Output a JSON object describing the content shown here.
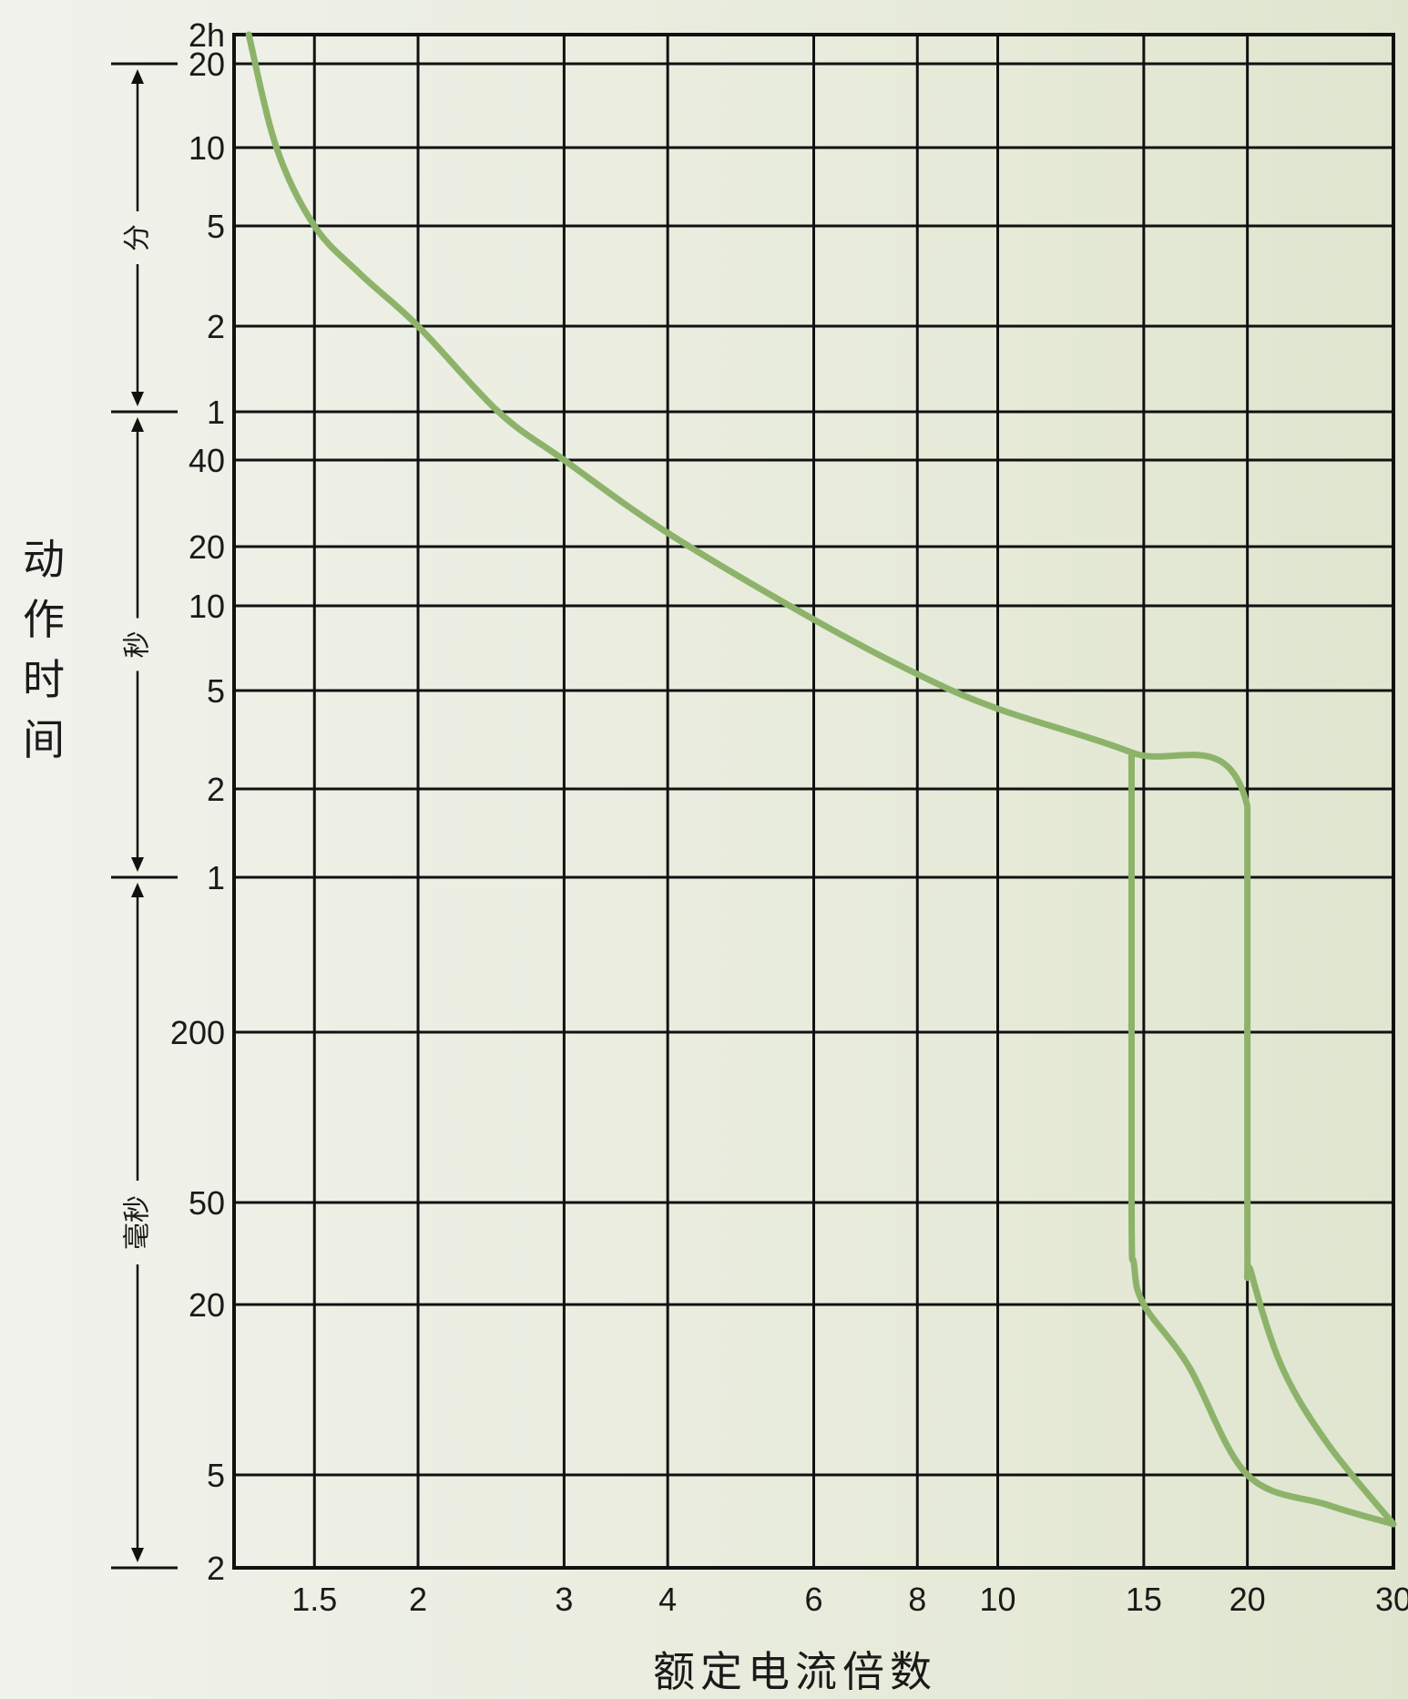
{
  "chart_data": {
    "type": "line",
    "title": "",
    "xlabel": "额定电流倍数",
    "ylabel": "动作时间",
    "x_scale": "log",
    "y_scale": "log",
    "xlim": [
      1.2,
      30
    ],
    "grid": true,
    "x_ticks": [
      {
        "value": 1.5,
        "label": "1.5"
      },
      {
        "value": 2,
        "label": "2"
      },
      {
        "value": 3,
        "label": "3"
      },
      {
        "value": 4,
        "label": "4"
      },
      {
        "value": 6,
        "label": "6"
      },
      {
        "value": 8,
        "label": "8"
      },
      {
        "value": 10,
        "label": "10"
      },
      {
        "value": 15,
        "label": "15"
      },
      {
        "value": 20,
        "label": "20"
      },
      {
        "value": 30,
        "label": "30"
      }
    ],
    "y_ticks": [
      {
        "label": "2h"
      },
      {
        "label": "20"
      },
      {
        "label": "10"
      },
      {
        "label": "5"
      },
      {
        "label": "2"
      },
      {
        "label": "1"
      },
      {
        "label": "40"
      },
      {
        "label": "20"
      },
      {
        "label": "10"
      },
      {
        "label": "5"
      },
      {
        "label": "2"
      },
      {
        "label": "1"
      },
      {
        "label": "200"
      },
      {
        "label": "50"
      },
      {
        "label": "20"
      },
      {
        "label": "5"
      },
      {
        "label": "2"
      }
    ],
    "y_unit_bands": [
      {
        "label": "分"
      },
      {
        "label": "秒"
      },
      {
        "label": "毫秒"
      }
    ],
    "line_color": "#8db36b",
    "series": [
      {
        "x": [
          1.25,
          1.35,
          1.5,
          1.7,
          2.0,
          2.5,
          3.0,
          4.0,
          6.0,
          8.0,
          10.0,
          14.5,
          20.0,
          20.0,
          20.2,
          22.0,
          25.0,
          30.0
        ],
        "y_label_positions": [
          "above 2h",
          "10 min",
          "5 min",
          "≈3 min",
          "2 min",
          "≈1 min",
          "40 s",
          "≈22 s",
          "≈9 s",
          "≈6 s",
          "≈4 s",
          "≈2.7 s",
          "≈1.7 s",
          "≈35 ms",
          "≈18 ms",
          "≈8 ms",
          "≈4 ms",
          "≈3 ms"
        ]
      },
      {
        "x": [
          14.5,
          14.5,
          14.6,
          15.0,
          17.0,
          20.0,
          25.0,
          30.0
        ],
        "y_label_positions": [
          "≈2.7 s",
          "50 ms",
          "≈30 ms",
          "20 ms",
          "≈8 ms",
          "5 ms",
          "≈3.5 ms",
          "≈3 ms"
        ]
      }
    ]
  }
}
